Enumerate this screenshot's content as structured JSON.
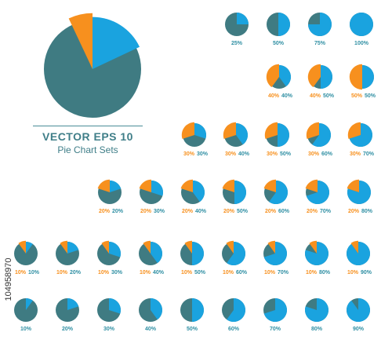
{
  "heading": {
    "title": "VECTOR EPS 10",
    "subtitle": "Pie Chart Sets"
  },
  "side_id": "104958970",
  "colors": {
    "blue": "#1aa3df",
    "teal": "#3f7b82",
    "orange": "#f7901e",
    "labelTeal": "#2f8fa3"
  },
  "hero_pie": {
    "blue": 0.18,
    "orange": 0.07
  },
  "rows": [
    {
      "items": [
        {
          "blue": 0.25,
          "orange": 0,
          "labels": [
            "25%"
          ]
        },
        {
          "blue": 0.5,
          "orange": 0,
          "labels": [
            "50%"
          ]
        },
        {
          "blue": 0.75,
          "orange": 0,
          "labels": [
            "75%"
          ]
        },
        {
          "blue": 1.0,
          "orange": 0,
          "labels": [
            "100%"
          ]
        }
      ]
    },
    {
      "items": [
        {
          "orange": 0.4,
          "blue": 0.4,
          "labels": [
            "40%",
            "40%"
          ]
        },
        {
          "orange": 0.4,
          "blue": 0.5,
          "labels": [
            "40%",
            "50%"
          ]
        },
        {
          "orange": 0.5,
          "blue": 0.5,
          "labels": [
            "50%",
            "50%"
          ]
        }
      ]
    },
    {
      "items": [
        {
          "orange": 0.3,
          "blue": 0.3,
          "labels": [
            "30%",
            "30%"
          ]
        },
        {
          "orange": 0.3,
          "blue": 0.4,
          "labels": [
            "30%",
            "40%"
          ]
        },
        {
          "orange": 0.3,
          "blue": 0.5,
          "labels": [
            "30%",
            "50%"
          ]
        },
        {
          "orange": 0.3,
          "blue": 0.6,
          "labels": [
            "30%",
            "60%"
          ]
        },
        {
          "orange": 0.3,
          "blue": 0.7,
          "labels": [
            "30%",
            "70%"
          ]
        }
      ]
    },
    {
      "items": [
        {
          "orange": 0.2,
          "blue": 0.2,
          "labels": [
            "20%",
            "20%"
          ]
        },
        {
          "orange": 0.2,
          "blue": 0.3,
          "labels": [
            "20%",
            "30%"
          ]
        },
        {
          "orange": 0.2,
          "blue": 0.4,
          "labels": [
            "20%",
            "40%"
          ]
        },
        {
          "orange": 0.2,
          "blue": 0.5,
          "labels": [
            "20%",
            "50%"
          ]
        },
        {
          "orange": 0.2,
          "blue": 0.6,
          "labels": [
            "20%",
            "60%"
          ]
        },
        {
          "orange": 0.2,
          "blue": 0.7,
          "labels": [
            "20%",
            "70%"
          ]
        },
        {
          "orange": 0.2,
          "blue": 0.8,
          "labels": [
            "20%",
            "80%"
          ]
        }
      ]
    },
    {
      "items": [
        {
          "orange": 0.1,
          "blue": 0.1,
          "labels": [
            "10%",
            "10%"
          ]
        },
        {
          "orange": 0.1,
          "blue": 0.2,
          "labels": [
            "10%",
            "20%"
          ]
        },
        {
          "orange": 0.1,
          "blue": 0.3,
          "labels": [
            "10%",
            "30%"
          ]
        },
        {
          "orange": 0.1,
          "blue": 0.4,
          "labels": [
            "10%",
            "40%"
          ]
        },
        {
          "orange": 0.1,
          "blue": 0.5,
          "labels": [
            "10%",
            "50%"
          ]
        },
        {
          "orange": 0.1,
          "blue": 0.6,
          "labels": [
            "10%",
            "60%"
          ]
        },
        {
          "orange": 0.1,
          "blue": 0.7,
          "labels": [
            "10%",
            "70%"
          ]
        },
        {
          "orange": 0.1,
          "blue": 0.8,
          "labels": [
            "10%",
            "80%"
          ]
        },
        {
          "orange": 0.1,
          "blue": 0.9,
          "labels": [
            "10%",
            "90%"
          ]
        }
      ]
    },
    {
      "items": [
        {
          "orange": 0,
          "blue": 0.1,
          "labels": [
            "10%"
          ]
        },
        {
          "orange": 0,
          "blue": 0.2,
          "labels": [
            "20%"
          ]
        },
        {
          "orange": 0,
          "blue": 0.3,
          "labels": [
            "30%"
          ]
        },
        {
          "orange": 0,
          "blue": 0.4,
          "labels": [
            "40%"
          ]
        },
        {
          "orange": 0,
          "blue": 0.5,
          "labels": [
            "50%"
          ]
        },
        {
          "orange": 0,
          "blue": 0.6,
          "labels": [
            "60%"
          ]
        },
        {
          "orange": 0,
          "blue": 0.7,
          "labels": [
            "70%"
          ]
        },
        {
          "orange": 0,
          "blue": 0.8,
          "labels": [
            "80%"
          ]
        },
        {
          "orange": 0,
          "blue": 0.9,
          "labels": [
            "90%"
          ]
        }
      ]
    }
  ]
}
